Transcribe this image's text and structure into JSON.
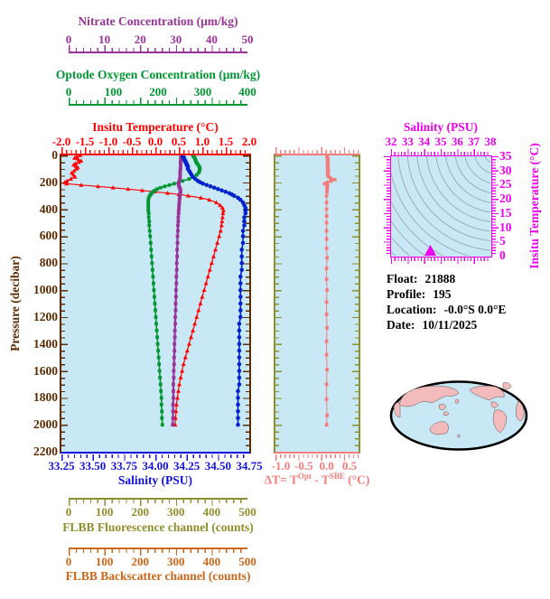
{
  "colors": {
    "nitrate": "#993399",
    "oxygen": "#009632",
    "temperature": "#FF0000",
    "pressure": "#5C2A00",
    "salinity": "#1111DD",
    "olive": "#8F8F2D",
    "orange": "#CC6619",
    "salmon": "#F47C7C",
    "magenta": "#EE00EE",
    "plot_bg": "#C9E8F5",
    "land": "#F3BBBB"
  },
  "axes": {
    "nitrate": {
      "title": "Nitrate Concentration (μm/kg)",
      "ticks": [
        "0",
        "10",
        "20",
        "30",
        "40",
        "50"
      ]
    },
    "oxygen": {
      "title": "Optode Oxygen Concentration (μm/kg)",
      "ticks": [
        "0",
        "100",
        "200",
        "300",
        "400"
      ]
    },
    "temperature": {
      "title": "Insitu Temperature (°C)",
      "ticks": [
        "-2.0",
        "-1.5",
        "-1.0",
        "-0.5",
        "0.0",
        "0.5",
        "1.0",
        "1.5",
        "2.0"
      ]
    },
    "pressure": {
      "title": "Pressure (decibar)",
      "ticks": [
        "0",
        "200",
        "400",
        "600",
        "800",
        "1000",
        "1200",
        "1400",
        "1600",
        "1800",
        "2000",
        "2200"
      ]
    },
    "salinity": {
      "title": "Salinity (PSU)",
      "ticks": [
        "33.25",
        "33.50",
        "33.75",
        "34.00",
        "34.25",
        "34.50",
        "34.75"
      ]
    },
    "fluorescence": {
      "title": "FLBB Fluorescence channel (counts)",
      "ticks": [
        "0",
        "100",
        "200",
        "300",
        "400",
        "500"
      ]
    },
    "backscatter": {
      "title": "FLBB Backscatter channel (counts)",
      "ticks": [
        "0",
        "100",
        "200",
        "300",
        "400",
        "500"
      ]
    }
  },
  "dt_panel": {
    "ticks": [
      "-1.0",
      "-0.5",
      "0.0",
      "0.5"
    ],
    "label": {
      "pre": "ΔT= T",
      "sup1": "Opt",
      "mid": " - T",
      "sup2": "SBE",
      "post": " (°C)"
    }
  },
  "ts_panel": {
    "top_title": "Salinity (PSU)",
    "top_ticks": [
      "32",
      "33",
      "34",
      "35",
      "36",
      "37",
      "38"
    ],
    "right_title": "Insitu Temperature (°C)",
    "right_ticks": [
      "35",
      "30",
      "25",
      "20",
      "15",
      "10",
      "5",
      "0"
    ]
  },
  "info": {
    "float_label": "Float:",
    "float_value": "21888",
    "profile_label": "Profile:",
    "profile_value": "195",
    "location_label": "Location:",
    "location_value": "-0.0°S  0.0°E",
    "date_label": "Date:",
    "date_value": "10/11/2025"
  },
  "chart_data": {
    "type": "line",
    "title": "Argo float vertical profiles",
    "ylabel": "Pressure (decibar)",
    "pressure_range": [
      0,
      2200
    ],
    "pressure_db": [
      0,
      10,
      20,
      30,
      40,
      50,
      60,
      70,
      80,
      90,
      100,
      115,
      130,
      145,
      160,
      175,
      190,
      200,
      210,
      220,
      230,
      240,
      250,
      260,
      270,
      280,
      290,
      300,
      315,
      330,
      350,
      370,
      390,
      410,
      430,
      460,
      490,
      520,
      560,
      600,
      650,
      700,
      750,
      800,
      850,
      900,
      950,
      1000,
      1050,
      1100,
      1150,
      1200,
      1250,
      1300,
      1350,
      1400,
      1450,
      1500,
      1550,
      1600,
      1650,
      1700,
      1750,
      1800,
      1850,
      1900,
      1950,
      2000
    ],
    "series": [
      {
        "name": "Insitu Temperature (°C)",
        "color": "#FF0000",
        "marker": "triangle",
        "line_width": 1.2,
        "axis_range": [
          -2,
          2
        ],
        "values": [
          -1.6,
          -1.68,
          -1.72,
          -1.64,
          -1.58,
          -1.63,
          -1.7,
          -1.74,
          -1.69,
          -1.65,
          -1.68,
          -1.73,
          -1.78,
          -1.74,
          -1.71,
          -1.8,
          -1.88,
          -1.93,
          -1.89,
          -1.58,
          -1.22,
          -0.9,
          -0.58,
          -0.28,
          -0.02,
          0.26,
          0.5,
          0.7,
          0.97,
          1.15,
          1.3,
          1.38,
          1.43,
          1.45,
          1.44,
          1.43,
          1.42,
          1.41,
          1.39,
          1.36,
          1.32,
          1.28,
          1.24,
          1.2,
          1.16,
          1.12,
          1.08,
          1.04,
          1.0,
          0.96,
          0.92,
          0.88,
          0.84,
          0.8,
          0.76,
          0.72,
          0.68,
          0.64,
          0.6,
          0.57,
          0.54,
          0.51,
          0.49,
          0.47,
          0.45,
          0.44,
          0.43,
          0.42
        ]
      },
      {
        "name": "Optode Oxygen Concentration (μm/kg)",
        "color": "#009632",
        "marker": "square",
        "line_width": 1.6,
        "axis_range": [
          0,
          400
        ],
        "values": [
          280,
          282,
          284,
          285,
          286,
          287,
          289,
          291,
          293,
          294,
          295,
          294,
          292,
          288,
          282,
          272,
          258,
          250,
          240,
          230,
          220,
          211,
          204,
          199,
          195,
          192,
          190,
          188,
          186,
          185,
          185,
          185,
          185,
          185,
          186,
          186,
          187,
          187,
          188,
          189,
          190,
          191,
          192,
          193,
          194,
          195,
          196,
          197,
          198,
          199,
          200,
          201,
          202,
          203,
          204,
          205,
          206,
          207,
          208,
          209,
          210,
          211,
          212,
          213,
          213,
          214,
          214,
          215
        ]
      },
      {
        "name": "Nitrate Concentration (μm/kg)",
        "color": "#993399",
        "marker": "square",
        "line_width": 2.2,
        "axis_range": [
          0,
          50
        ],
        "values": [
          31.8,
          31.8,
          31.8,
          31.8,
          31.8,
          31.7,
          31.7,
          31.7,
          31.7,
          31.7,
          31.7,
          31.6,
          31.6,
          31.6,
          31.6,
          31.5,
          31.4,
          31.3,
          31.2,
          31.2,
          31.3,
          31.5,
          31.6,
          31.7,
          31.7,
          31.6,
          31.6,
          31.5,
          31.5,
          31.4,
          31.4,
          31.3,
          31.3,
          31.2,
          31.2,
          31.1,
          31.1,
          31.0,
          31.0,
          30.9,
          30.9,
          30.8,
          30.8,
          30.7,
          30.7,
          30.6,
          30.6,
          30.5,
          30.5,
          30.4,
          30.4,
          30.3,
          30.3,
          30.2,
          30.2,
          30.1,
          30.1,
          30.0,
          30.0,
          29.9,
          29.9,
          29.8,
          29.8,
          29.8,
          29.7,
          29.7,
          29.7,
          29.6
        ]
      },
      {
        "name": "Salinity (PSU)",
        "color": "#0022CC",
        "marker": "circle",
        "line_width": 1.6,
        "axis_range": [
          33.25,
          34.75
        ],
        "values": [
          34.22,
          34.22,
          34.23,
          34.23,
          34.24,
          34.24,
          34.25,
          34.25,
          34.26,
          34.26,
          34.26,
          34.27,
          34.28,
          34.29,
          34.3,
          34.32,
          34.34,
          34.36,
          34.38,
          34.41,
          34.44,
          34.47,
          34.5,
          34.53,
          34.56,
          34.59,
          34.61,
          34.63,
          34.66,
          34.68,
          34.7,
          34.71,
          34.72,
          34.72,
          34.72,
          34.71,
          34.71,
          34.71,
          34.7,
          34.7,
          34.7,
          34.69,
          34.69,
          34.69,
          34.69,
          34.68,
          34.68,
          34.68,
          34.68,
          34.68,
          34.68,
          34.68,
          34.67,
          34.67,
          34.67,
          34.67,
          34.67,
          34.67,
          34.67,
          34.67,
          34.67,
          34.67,
          34.66,
          34.66,
          34.66,
          34.66,
          34.66,
          34.66
        ]
      }
    ],
    "delta_t": {
      "name": "ΔT = T(Opt) - T(SBE) (°C)",
      "color": "#F47C7C",
      "axis_range": [
        -1.12,
        0.7
      ],
      "pressure_db": [
        0,
        10,
        20,
        30,
        40,
        50,
        60,
        70,
        80,
        90,
        100,
        110,
        120,
        130,
        140,
        150,
        160,
        170,
        180,
        190,
        200,
        210,
        220,
        230,
        240,
        250,
        270,
        300,
        350,
        400,
        450,
        500,
        560,
        620,
        690,
        760,
        840,
        920,
        1000,
        1090,
        1180,
        1280,
        1380,
        1480,
        1590,
        1700,
        1810,
        1930,
        2000
      ],
      "values": [
        0.02,
        0.01,
        0.02,
        0.03,
        0.02,
        0.02,
        0.03,
        0.02,
        0.02,
        0.03,
        0.02,
        0.03,
        0.04,
        0.03,
        0.02,
        0.03,
        0.05,
        0.09,
        0.18,
        0.1,
        0.02,
        -0.04,
        0.01,
        0.02,
        0.01,
        0.01,
        0.01,
        0.0,
        0.0,
        0.0,
        0.0,
        0.0,
        0.0,
        0.0,
        0.0,
        0.01,
        0.0,
        0.0,
        0.01,
        0.0,
        0.0,
        0.01,
        0.0,
        0.0,
        0.01,
        0.0,
        0.0,
        0.01,
        0.0
      ]
    },
    "ts_diagram": {
      "salinity_range": [
        32,
        38
      ],
      "temperature_range": [
        0,
        35
      ],
      "profile_cluster": {
        "salinity": [
          34.3,
          34.75
        ],
        "temperature": [
          0,
          3
        ]
      }
    }
  }
}
